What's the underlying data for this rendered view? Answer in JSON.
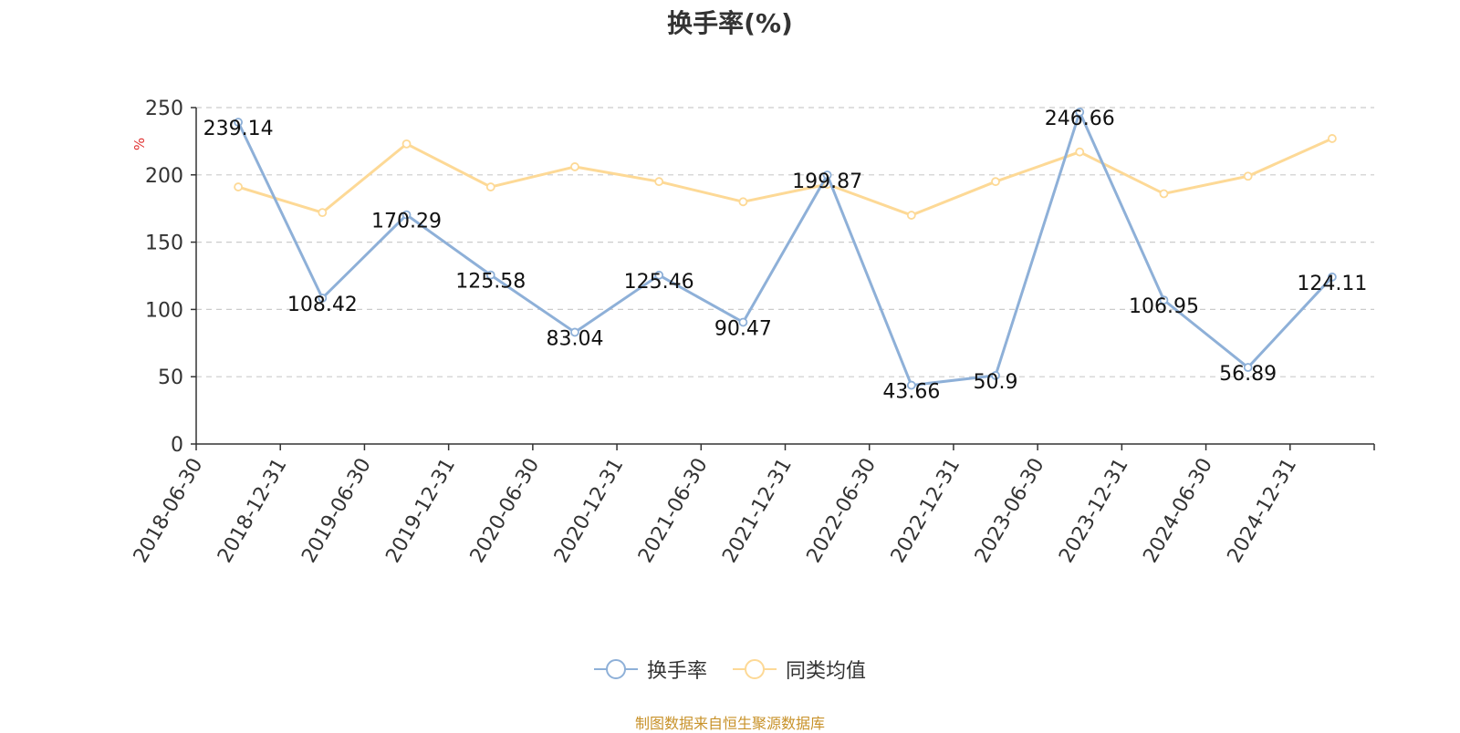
{
  "title": "换手率(%)",
  "source": "制图数据来自恒生聚源数据库",
  "colors": {
    "series1": "#8eb0d8",
    "series2": "#fdd996",
    "grid": "#cccccc",
    "axis": "#333333",
    "unit": "#e03030",
    "source": "#c8922a"
  },
  "chart_data": {
    "type": "line",
    "title": "换手率(%)",
    "ylabel": "%",
    "ylim": [
      0,
      250
    ],
    "yticks": [
      0,
      50,
      100,
      150,
      200,
      250
    ],
    "grid": true,
    "legend_position": "bottom",
    "categories": [
      "2018-06-30",
      "2018-12-31",
      "2019-06-30",
      "2019-12-31",
      "2020-06-30",
      "2020-12-31",
      "2021-06-30",
      "2021-12-31",
      "2022-06-30",
      "2022-12-31",
      "2023-06-30",
      "2023-12-31",
      "2024-06-30",
      "2024-12-31"
    ],
    "series": [
      {
        "name": "换手率",
        "values": [
          239.14,
          108.42,
          170.29,
          125.58,
          83.04,
          125.46,
          90.47,
          199.87,
          43.66,
          50.9,
          246.66,
          106.95,
          56.89,
          124.11
        ],
        "labels": [
          "239.14",
          "108.42",
          "170.29",
          "125.58",
          "83.04",
          "125.46",
          "90.47",
          "199.87",
          "43.66",
          "50.9",
          "246.66",
          "106.95",
          "56.89",
          "124.11"
        ]
      },
      {
        "name": "同类均值",
        "values": [
          191,
          172,
          223,
          191,
          206,
          195,
          180,
          193,
          170,
          195,
          217,
          186,
          199,
          227
        ]
      }
    ]
  }
}
